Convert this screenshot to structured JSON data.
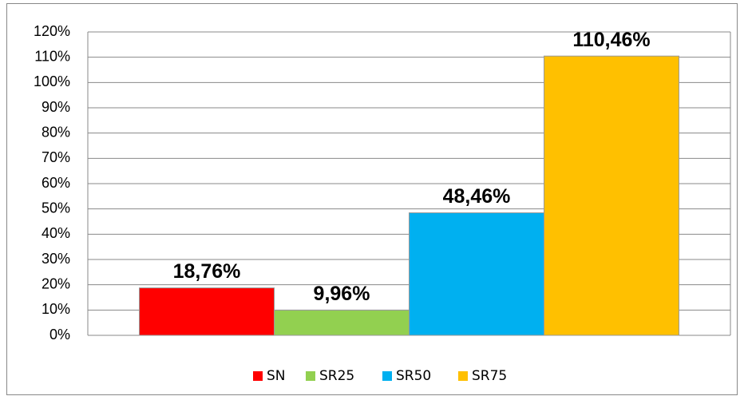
{
  "chart_data": {
    "type": "bar",
    "categories": [
      "SN",
      "SR25",
      "SR50",
      "SR75"
    ],
    "values": [
      18.76,
      9.96,
      48.46,
      110.46
    ],
    "value_labels": [
      "18,76%",
      "9,96%",
      "48,46%",
      "110,46%"
    ],
    "colors": [
      "#ff0000",
      "#92d050",
      "#00b0f0",
      "#ffc000"
    ],
    "ylim": [
      0,
      120
    ],
    "yticks": [
      {
        "value": 0,
        "label": "0%"
      },
      {
        "value": 10,
        "label": "10%"
      },
      {
        "value": 20,
        "label": "20%"
      },
      {
        "value": 30,
        "label": "30%"
      },
      {
        "value": 40,
        "label": "40%"
      },
      {
        "value": 50,
        "label": "50%"
      },
      {
        "value": 60,
        "label": "60%"
      },
      {
        "value": 70,
        "label": "70%"
      },
      {
        "value": 80,
        "label": "80%"
      },
      {
        "value": 90,
        "label": "90%"
      },
      {
        "value": 100,
        "label": "100%"
      },
      {
        "value": 110,
        "label": "110%"
      },
      {
        "value": 120,
        "label": "120%"
      }
    ],
    "grid": true,
    "legend": "bottom"
  }
}
